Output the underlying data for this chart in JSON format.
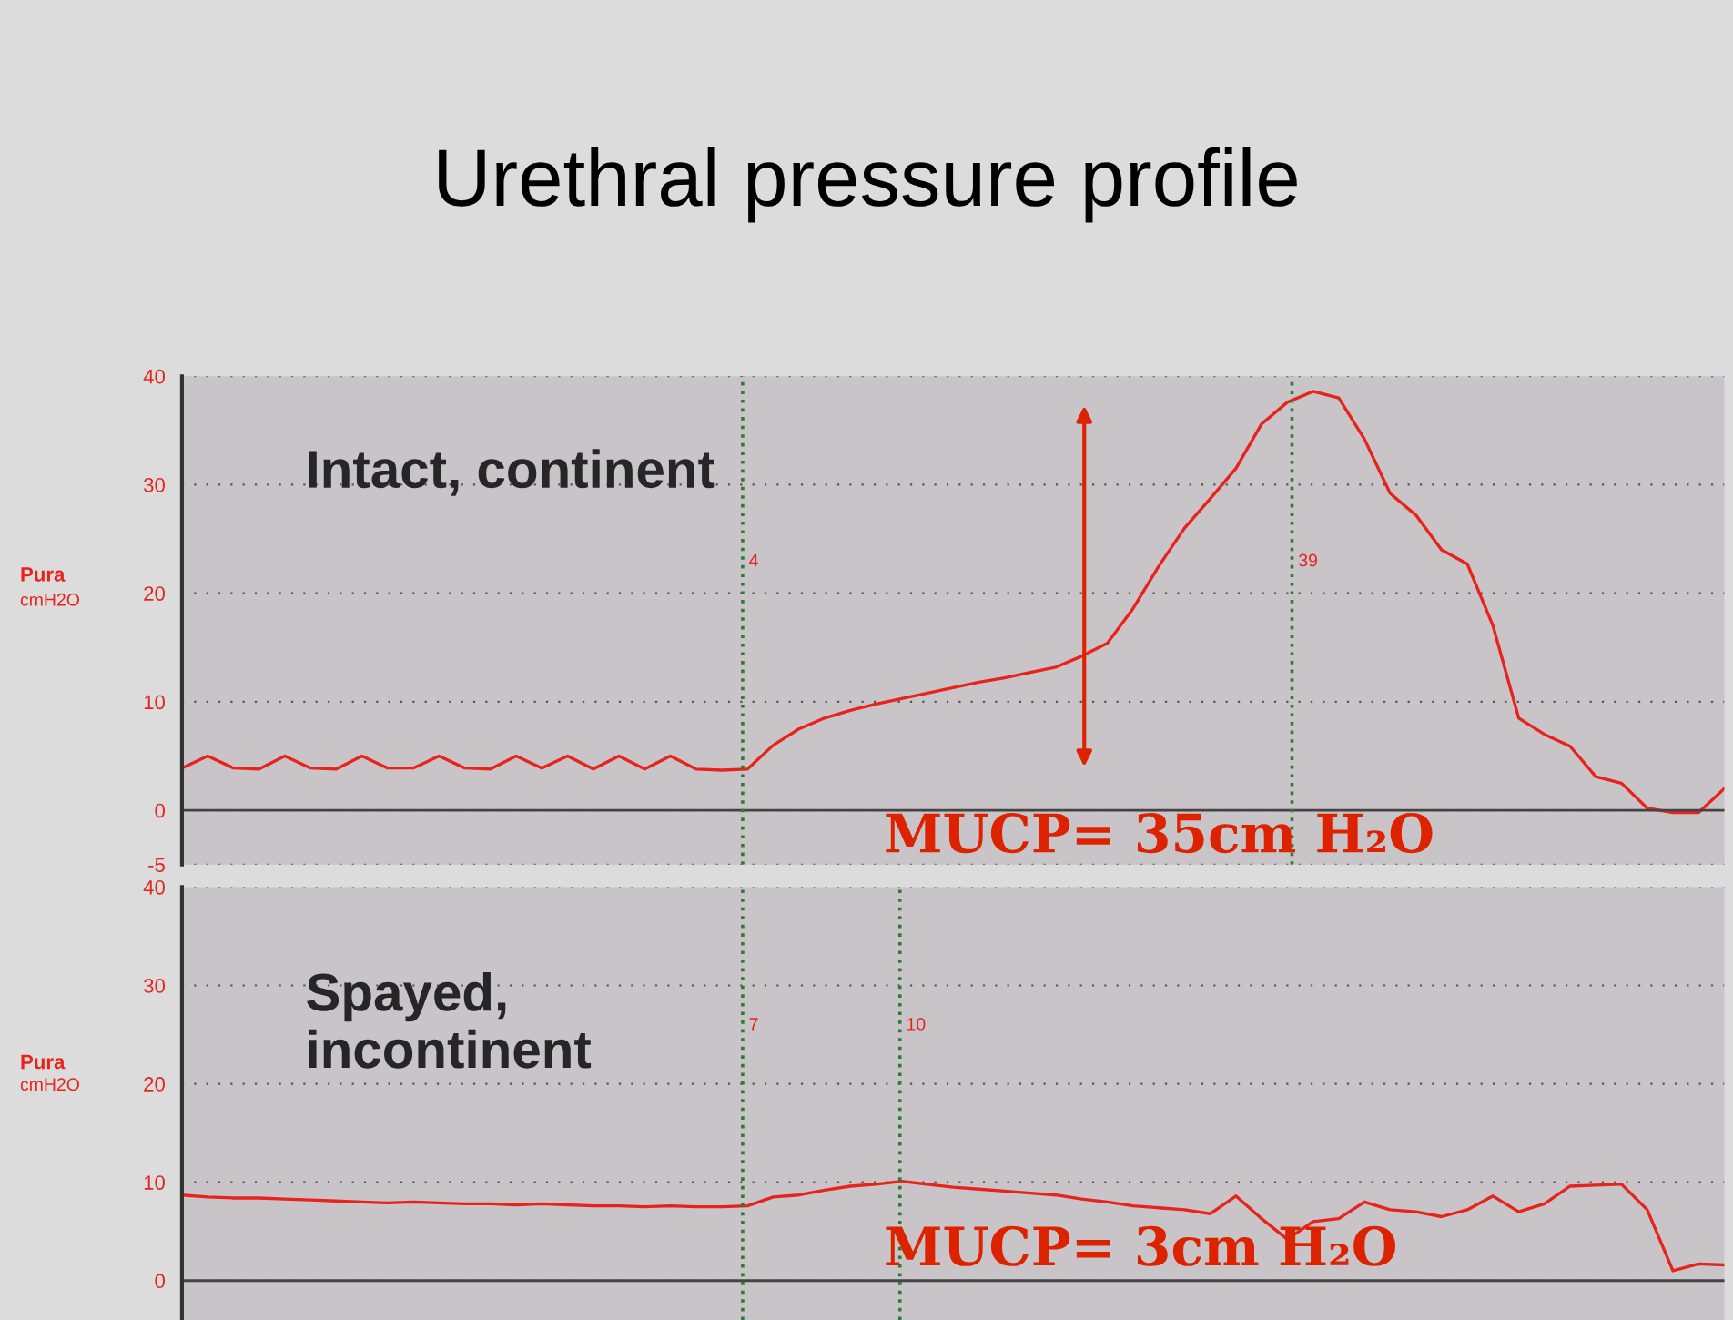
{
  "chart_data": [
    {
      "type": "line",
      "title": "Urethral pressure profile",
      "ylabel": "Pura\ncmH2O",
      "categories": [
        null,
        null,
        null,
        null,
        null,
        null,
        null,
        null,
        null,
        null,
        null,
        null,
        null,
        null,
        null,
        null,
        null,
        null,
        null,
        null,
        null,
        null,
        null,
        null,
        null,
        null,
        null,
        null,
        null,
        null,
        null,
        null,
        null,
        null,
        null,
        null,
        null,
        null,
        null,
        null,
        null,
        null,
        null,
        null,
        null,
        null,
        null,
        null,
        null,
        null,
        null,
        null,
        null,
        null,
        null,
        null,
        null,
        null,
        null,
        null,
        null
      ],
      "series": [
        {
          "color": "#e8231c",
          "values": [
            3.9,
            5.0,
            3.9,
            3.8,
            5.0,
            3.9,
            3.8,
            5.0,
            3.9,
            3.9,
            5.0,
            3.9,
            3.8,
            5.0,
            3.9,
            5.0,
            3.8,
            5.0,
            3.8,
            5.0,
            3.8,
            3.7,
            3.8,
            6.0,
            7.5,
            8.5,
            9.2,
            9.8,
            10.3,
            10.8,
            11.3,
            11.8,
            12.2,
            12.7,
            13.2,
            14.2,
            15.4,
            18.6,
            22.5,
            26.0,
            28.7,
            31.5,
            35.6,
            37.6,
            38.6,
            38.0,
            34.2,
            29.2,
            27.2,
            24.0,
            22.7,
            17.0,
            8.5,
            7.0,
            5.9,
            3.1,
            2.5,
            0.2,
            -0.2,
            -0.2,
            2.0
          ]
        }
      ],
      "ylim": [
        -5,
        40
      ],
      "yticks": [
        -5,
        0,
        10,
        20,
        30,
        40
      ],
      "grid": "y",
      "tick_labels": "y",
      "line_style": "solid",
      "annotations": [
        "Intact, continent",
        "MUCP= 35cm H₂O",
        "4",
        "39"
      ]
    },
    {
      "type": "line",
      "ylabel": "Pura\ncmH2O",
      "categories": [
        null,
        null,
        null,
        null,
        null,
        null,
        null,
        null,
        null,
        null,
        null,
        null,
        null,
        null,
        null,
        null,
        null,
        null,
        null,
        null,
        null,
        null,
        null,
        null,
        null,
        null,
        null,
        null,
        null,
        null,
        null,
        null,
        null,
        null,
        null,
        null,
        null,
        null,
        null,
        null,
        null,
        null,
        null,
        null,
        null,
        null,
        null,
        null,
        null,
        null,
        null,
        null,
        null,
        null,
        null,
        null,
        null,
        null,
        null,
        null,
        null
      ],
      "series": [
        {
          "color": "#e8231c",
          "values": [
            8.7,
            8.5,
            8.4,
            8.4,
            8.3,
            8.2,
            8.1,
            8.0,
            7.9,
            8.0,
            7.9,
            7.8,
            7.8,
            7.7,
            7.8,
            7.7,
            7.6,
            7.6,
            7.5,
            7.6,
            7.5,
            7.5,
            7.6,
            8.5,
            8.7,
            9.2,
            9.6,
            9.8,
            10.1,
            9.8,
            9.5,
            9.3,
            9.1,
            8.9,
            8.7,
            8.3,
            8.0,
            7.6,
            7.4,
            7.2,
            6.8,
            8.6,
            6.3,
            4.2,
            6.0,
            6.3,
            8.0,
            7.2,
            7.0,
            6.5,
            7.2,
            8.6,
            7.0,
            7.8,
            9.6,
            9.7,
            9.8,
            7.2,
            1.0,
            1.7,
            1.6
          ]
        }
      ],
      "ylim": [
        -4,
        40
      ],
      "yticks": [
        0,
        10,
        20,
        30,
        40
      ],
      "grid": "y",
      "tick_labels": "y",
      "line_style": "solid",
      "annotations": [
        "Spayed,\nincontinent",
        "MUCP= 3cm H₂O",
        "7",
        "10"
      ]
    }
  ]
}
